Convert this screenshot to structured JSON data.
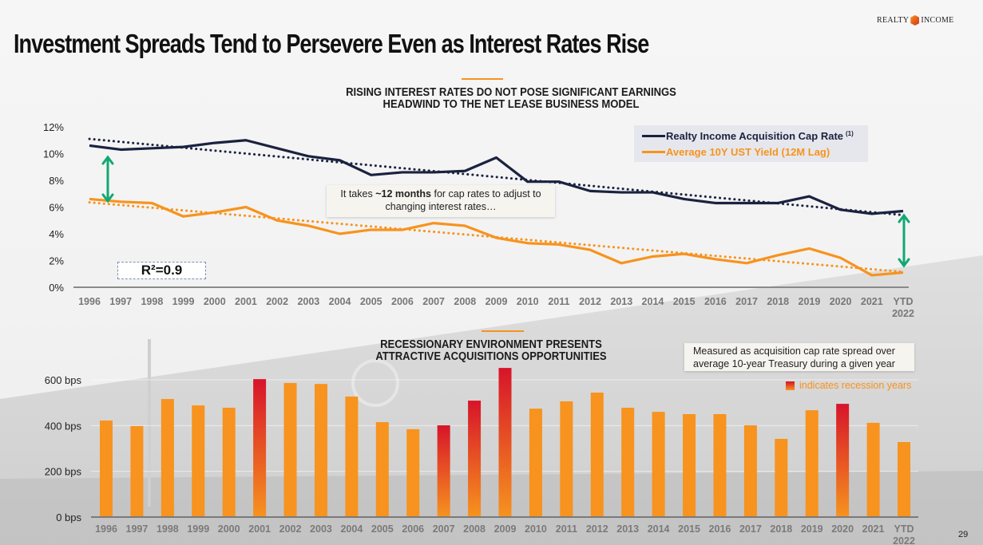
{
  "header": {
    "title": "Investment Spreads Tend to Persevere Even as Interest Rates Rise",
    "logo_left": "REALTY",
    "logo_right": "INCOME"
  },
  "top_section": {
    "subtitle_line1": "RISING INTEREST RATES DO NOT POSE SIGNIFICANT EARNINGS",
    "subtitle_line2": "HEADWIND TO THE NET LEASE BUSINESS MODEL",
    "callout_prefix": "It takes ",
    "callout_bold": "~12 months",
    "callout_suffix": " for cap rates to adjust to",
    "callout_line2": "changing interest rates…",
    "r_squared": "R²=0.9"
  },
  "bottom_section": {
    "subtitle_line1": "RECESSIONARY ENVIRONMENT PRESENTS",
    "subtitle_line2": "ATTRACTIVE ACQUISITIONS OPPORTUNITIES",
    "note_line1": "Measured as acquisition cap rate spread over",
    "note_line2": "average 10-year Treasury during a given year",
    "recession_legend": "indicates recession years"
  },
  "page_number": "29",
  "colors": {
    "navy": "#1b2240",
    "orange": "#f7931e",
    "red": "#d7142a",
    "green": "#12a873"
  },
  "chart_data": [
    {
      "type": "line",
      "title": "RISING INTEREST RATES DO NOT POSE SIGNIFICANT EARNINGS HEADWIND TO THE NET LEASE BUSINESS MODEL",
      "xlabel": "",
      "ylabel": "",
      "categories": [
        "1996",
        "1997",
        "1998",
        "1999",
        "2000",
        "2001",
        "2002",
        "2003",
        "2004",
        "2005",
        "2006",
        "2007",
        "2008",
        "2009",
        "2010",
        "2011",
        "2012",
        "2013",
        "2014",
        "2015",
        "2016",
        "2017",
        "2018",
        "2019",
        "2020",
        "2021",
        "YTD 2022"
      ],
      "yticks": [
        "0%",
        "2%",
        "4%",
        "6%",
        "8%",
        "10%",
        "12%"
      ],
      "ylim": [
        0,
        12
      ],
      "series": [
        {
          "name": "Realty Income Acquisition Cap Rate",
          "footnote": "(1)",
          "color": "#1b2240",
          "values": [
            10.6,
            10.3,
            10.4,
            10.5,
            10.8,
            11.0,
            10.4,
            9.8,
            9.5,
            8.4,
            8.6,
            8.6,
            8.7,
            9.7,
            7.9,
            7.9,
            7.2,
            7.1,
            7.1,
            6.6,
            6.3,
            6.3,
            6.3,
            6.8,
            5.8,
            5.5,
            5.7
          ],
          "trendline": [
            11.1,
            5.4
          ]
        },
        {
          "name": "Average 10Y UST Yield (12M Lag)",
          "color": "#f7931e",
          "values": [
            6.6,
            6.4,
            6.3,
            5.3,
            5.6,
            6.0,
            5.0,
            4.6,
            4.0,
            4.3,
            4.3,
            4.8,
            4.6,
            3.7,
            3.3,
            3.2,
            2.8,
            1.8,
            2.3,
            2.5,
            2.1,
            1.8,
            2.4,
            2.9,
            2.2,
            0.9,
            1.1
          ],
          "trendline": [
            6.35,
            1.15
          ]
        }
      ],
      "legend": "top-right",
      "grid": false,
      "annotations": [
        "It takes ~12 months for cap rates to adjust to changing interest rates…",
        "R²=0.9"
      ]
    },
    {
      "type": "bar",
      "title": "RECESSIONARY ENVIRONMENT PRESENTS ATTRACTIVE ACQUISITIONS OPPORTUNITIES",
      "xlabel": "",
      "ylabel": "",
      "categories": [
        "1996",
        "1997",
        "1998",
        "1999",
        "2000",
        "2001",
        "2002",
        "2003",
        "2004",
        "2005",
        "2006",
        "2007",
        "2008",
        "2009",
        "2010",
        "2011",
        "2012",
        "2013",
        "2014",
        "2015",
        "2016",
        "2017",
        "2018",
        "2019",
        "2020",
        "2021",
        "YTD 2022"
      ],
      "values": [
        422,
        398,
        516,
        488,
        478,
        603,
        586,
        582,
        527,
        415,
        384,
        401,
        509,
        652,
        474,
        506,
        544,
        478,
        460,
        450,
        450,
        401,
        342,
        467,
        495,
        412,
        328
      ],
      "recession_years": [
        "2001",
        "2007",
        "2008",
        "2009",
        "2020"
      ],
      "yticks": [
        "0 bps",
        "200 bps",
        "400 bps",
        "600 bps"
      ],
      "ylim": [
        0,
        600
      ],
      "unit": "bps",
      "grid": true,
      "annotations": [
        "Measured as acquisition cap rate spread over average 10-year Treasury during a given year",
        "indicates recession years"
      ]
    }
  ]
}
